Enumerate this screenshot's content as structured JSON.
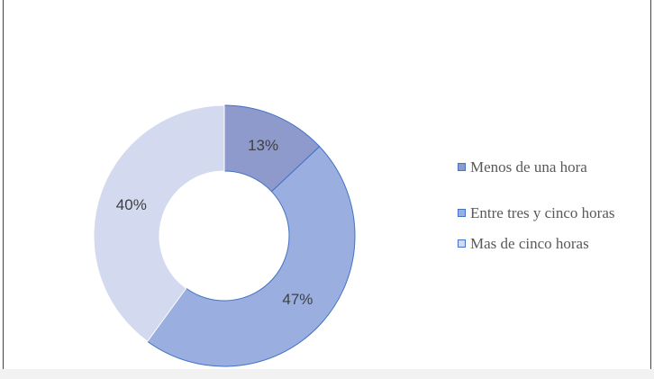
{
  "chart_data": {
    "type": "donut",
    "categories": [
      "Menos de una hora",
      "Entre tres y cinco horas",
      "Mas de cinco horas"
    ],
    "values": [
      13,
      47,
      40
    ],
    "value_labels": [
      "13%",
      "47%",
      "40%"
    ],
    "colors": [
      "#8e9acb",
      "#9aaee0",
      "#d3d9ee"
    ],
    "legend": "right"
  }
}
